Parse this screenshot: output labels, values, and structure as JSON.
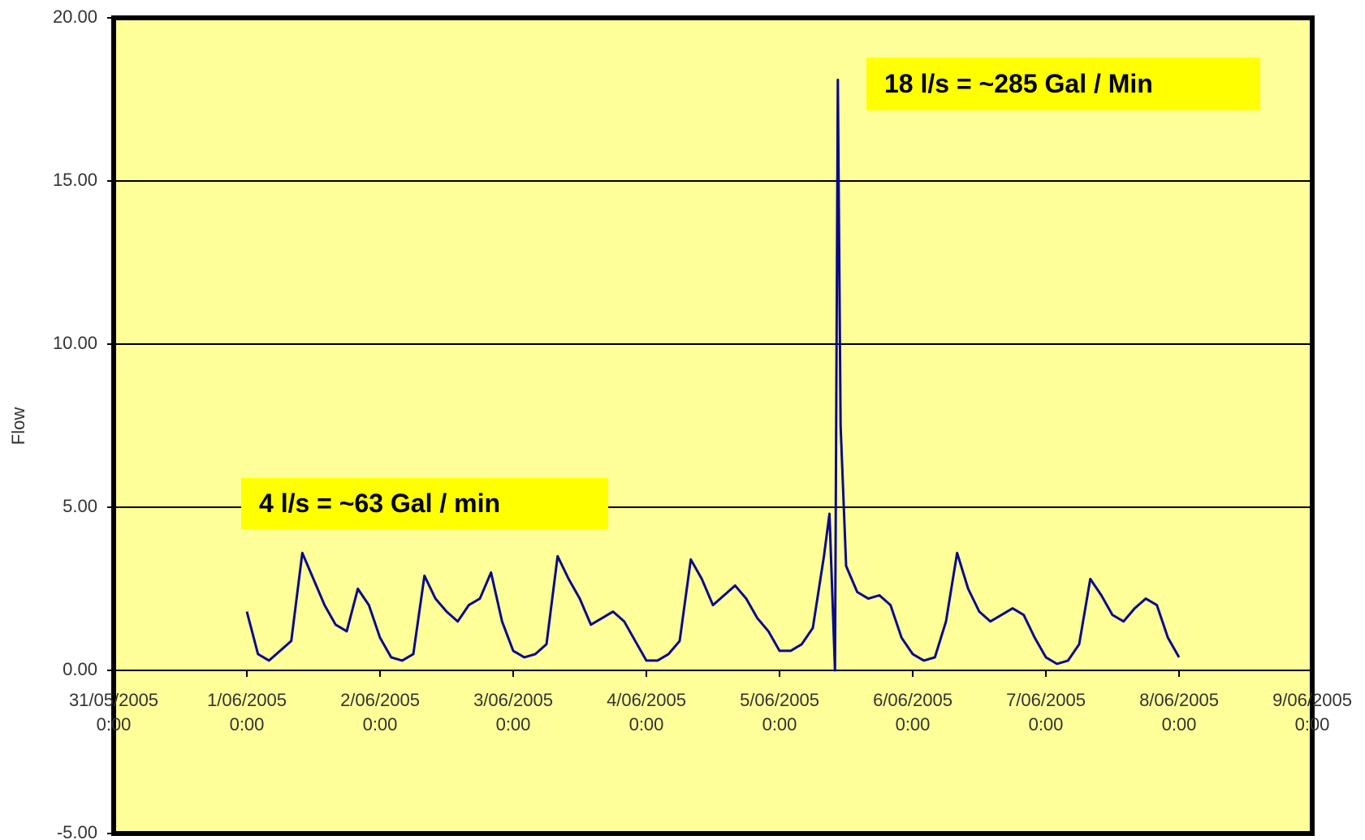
{
  "chart_data": {
    "type": "line",
    "y_label": "Flow",
    "annotations": [
      "18 l/s = ~285 Gal / Min",
      "4 l/s = ~63 Gal / min"
    ],
    "ylim": [
      -5,
      20
    ],
    "yticks": [
      {
        "value": -5,
        "label": "-5.00"
      },
      {
        "value": 0,
        "label": "0.00"
      },
      {
        "value": 5,
        "label": "5.00"
      },
      {
        "value": 10,
        "label": "10.00"
      },
      {
        "value": 15,
        "label": "15.00"
      },
      {
        "value": 20,
        "label": "20.00"
      }
    ],
    "xlim": [
      "31/05/2005 0:00",
      "9/06/2005 0:00"
    ],
    "xticks": [
      "31/05/2005 0:00",
      "1/06/2005 0:00",
      "2/06/2005 0:00",
      "3/06/2005 0:00",
      "4/06/2005 0:00",
      "5/06/2005 0:00",
      "6/06/2005 0:00",
      "7/06/2005 0:00",
      "8/06/2005 0:00",
      "9/06/2005 0:00"
    ],
    "grid": true,
    "series": [
      {
        "name": "Flow",
        "color": "#0a0a8a",
        "x": [
          "1/06/2005 0:00",
          "1/06/2005 2:00",
          "1/06/2005 4:00",
          "1/06/2005 6:00",
          "1/06/2005 8:00",
          "1/06/2005 10:00",
          "1/06/2005 12:00",
          "1/06/2005 14:00",
          "1/06/2005 16:00",
          "1/06/2005 18:00",
          "1/06/2005 20:00",
          "1/06/2005 22:00",
          "2/06/2005 0:00",
          "2/06/2005 2:00",
          "2/06/2005 4:00",
          "2/06/2005 6:00",
          "2/06/2005 8:00",
          "2/06/2005 10:00",
          "2/06/2005 12:00",
          "2/06/2005 14:00",
          "2/06/2005 16:00",
          "2/06/2005 18:00",
          "2/06/2005 20:00",
          "2/06/2005 22:00",
          "3/06/2005 0:00",
          "3/06/2005 2:00",
          "3/06/2005 4:00",
          "3/06/2005 6:00",
          "3/06/2005 8:00",
          "3/06/2005 10:00",
          "3/06/2005 12:00",
          "3/06/2005 14:00",
          "3/06/2005 16:00",
          "3/06/2005 18:00",
          "3/06/2005 20:00",
          "3/06/2005 22:00",
          "4/06/2005 0:00",
          "4/06/2005 2:00",
          "4/06/2005 4:00",
          "4/06/2005 6:00",
          "4/06/2005 8:00",
          "4/06/2005 10:00",
          "4/06/2005 12:00",
          "4/06/2005 14:00",
          "4/06/2005 16:00",
          "4/06/2005 18:00",
          "4/06/2005 20:00",
          "4/06/2005 22:00",
          "5/06/2005 0:00",
          "5/06/2005 2:00",
          "5/06/2005 4:00",
          "5/06/2005 6:00",
          "5/06/2005 8:00",
          "5/06/2005 9:00",
          "5/06/2005 10:00",
          "5/06/2005 10:30",
          "5/06/2005 11:00",
          "5/06/2005 12:00",
          "5/06/2005 14:00",
          "5/06/2005 16:00",
          "5/06/2005 18:00",
          "5/06/2005 20:00",
          "5/06/2005 22:00",
          "6/06/2005 0:00",
          "6/06/2005 2:00",
          "6/06/2005 4:00",
          "6/06/2005 6:00",
          "6/06/2005 8:00",
          "6/06/2005 10:00",
          "6/06/2005 12:00",
          "6/06/2005 14:00",
          "6/06/2005 16:00",
          "6/06/2005 18:00",
          "6/06/2005 20:00",
          "6/06/2005 22:00",
          "7/06/2005 0:00",
          "7/06/2005 2:00",
          "7/06/2005 4:00",
          "7/06/2005 6:00",
          "7/06/2005 8:00",
          "7/06/2005 10:00",
          "7/06/2005 12:00",
          "7/06/2005 14:00",
          "7/06/2005 16:00",
          "7/06/2005 18:00",
          "7/06/2005 20:00",
          "7/06/2005 22:00",
          "8/06/2005 0:00"
        ],
        "values": [
          1.8,
          0.5,
          0.3,
          0.6,
          0.9,
          3.6,
          2.8,
          2.0,
          1.4,
          1.2,
          2.5,
          2.0,
          1.0,
          0.4,
          0.3,
          0.5,
          2.9,
          2.2,
          1.8,
          1.5,
          2.0,
          2.2,
          3.0,
          1.5,
          0.6,
          0.4,
          0.5,
          0.8,
          3.5,
          2.8,
          2.2,
          1.4,
          1.6,
          1.8,
          1.5,
          0.9,
          0.3,
          0.3,
          0.5,
          0.9,
          3.4,
          2.8,
          2.0,
          2.3,
          2.6,
          2.2,
          1.6,
          1.2,
          0.6,
          0.6,
          0.8,
          1.3,
          3.5,
          4.8,
          0.0,
          18.1,
          7.5,
          3.2,
          2.4,
          2.2,
          2.3,
          2.0,
          1.0,
          0.5,
          0.3,
          0.4,
          1.5,
          3.6,
          2.5,
          1.8,
          1.5,
          1.7,
          1.9,
          1.7,
          1.0,
          0.4,
          0.2,
          0.3,
          0.8,
          2.8,
          2.3,
          1.7,
          1.5,
          1.9,
          2.2,
          2.0,
          1.0,
          0.4
        ]
      }
    ]
  }
}
